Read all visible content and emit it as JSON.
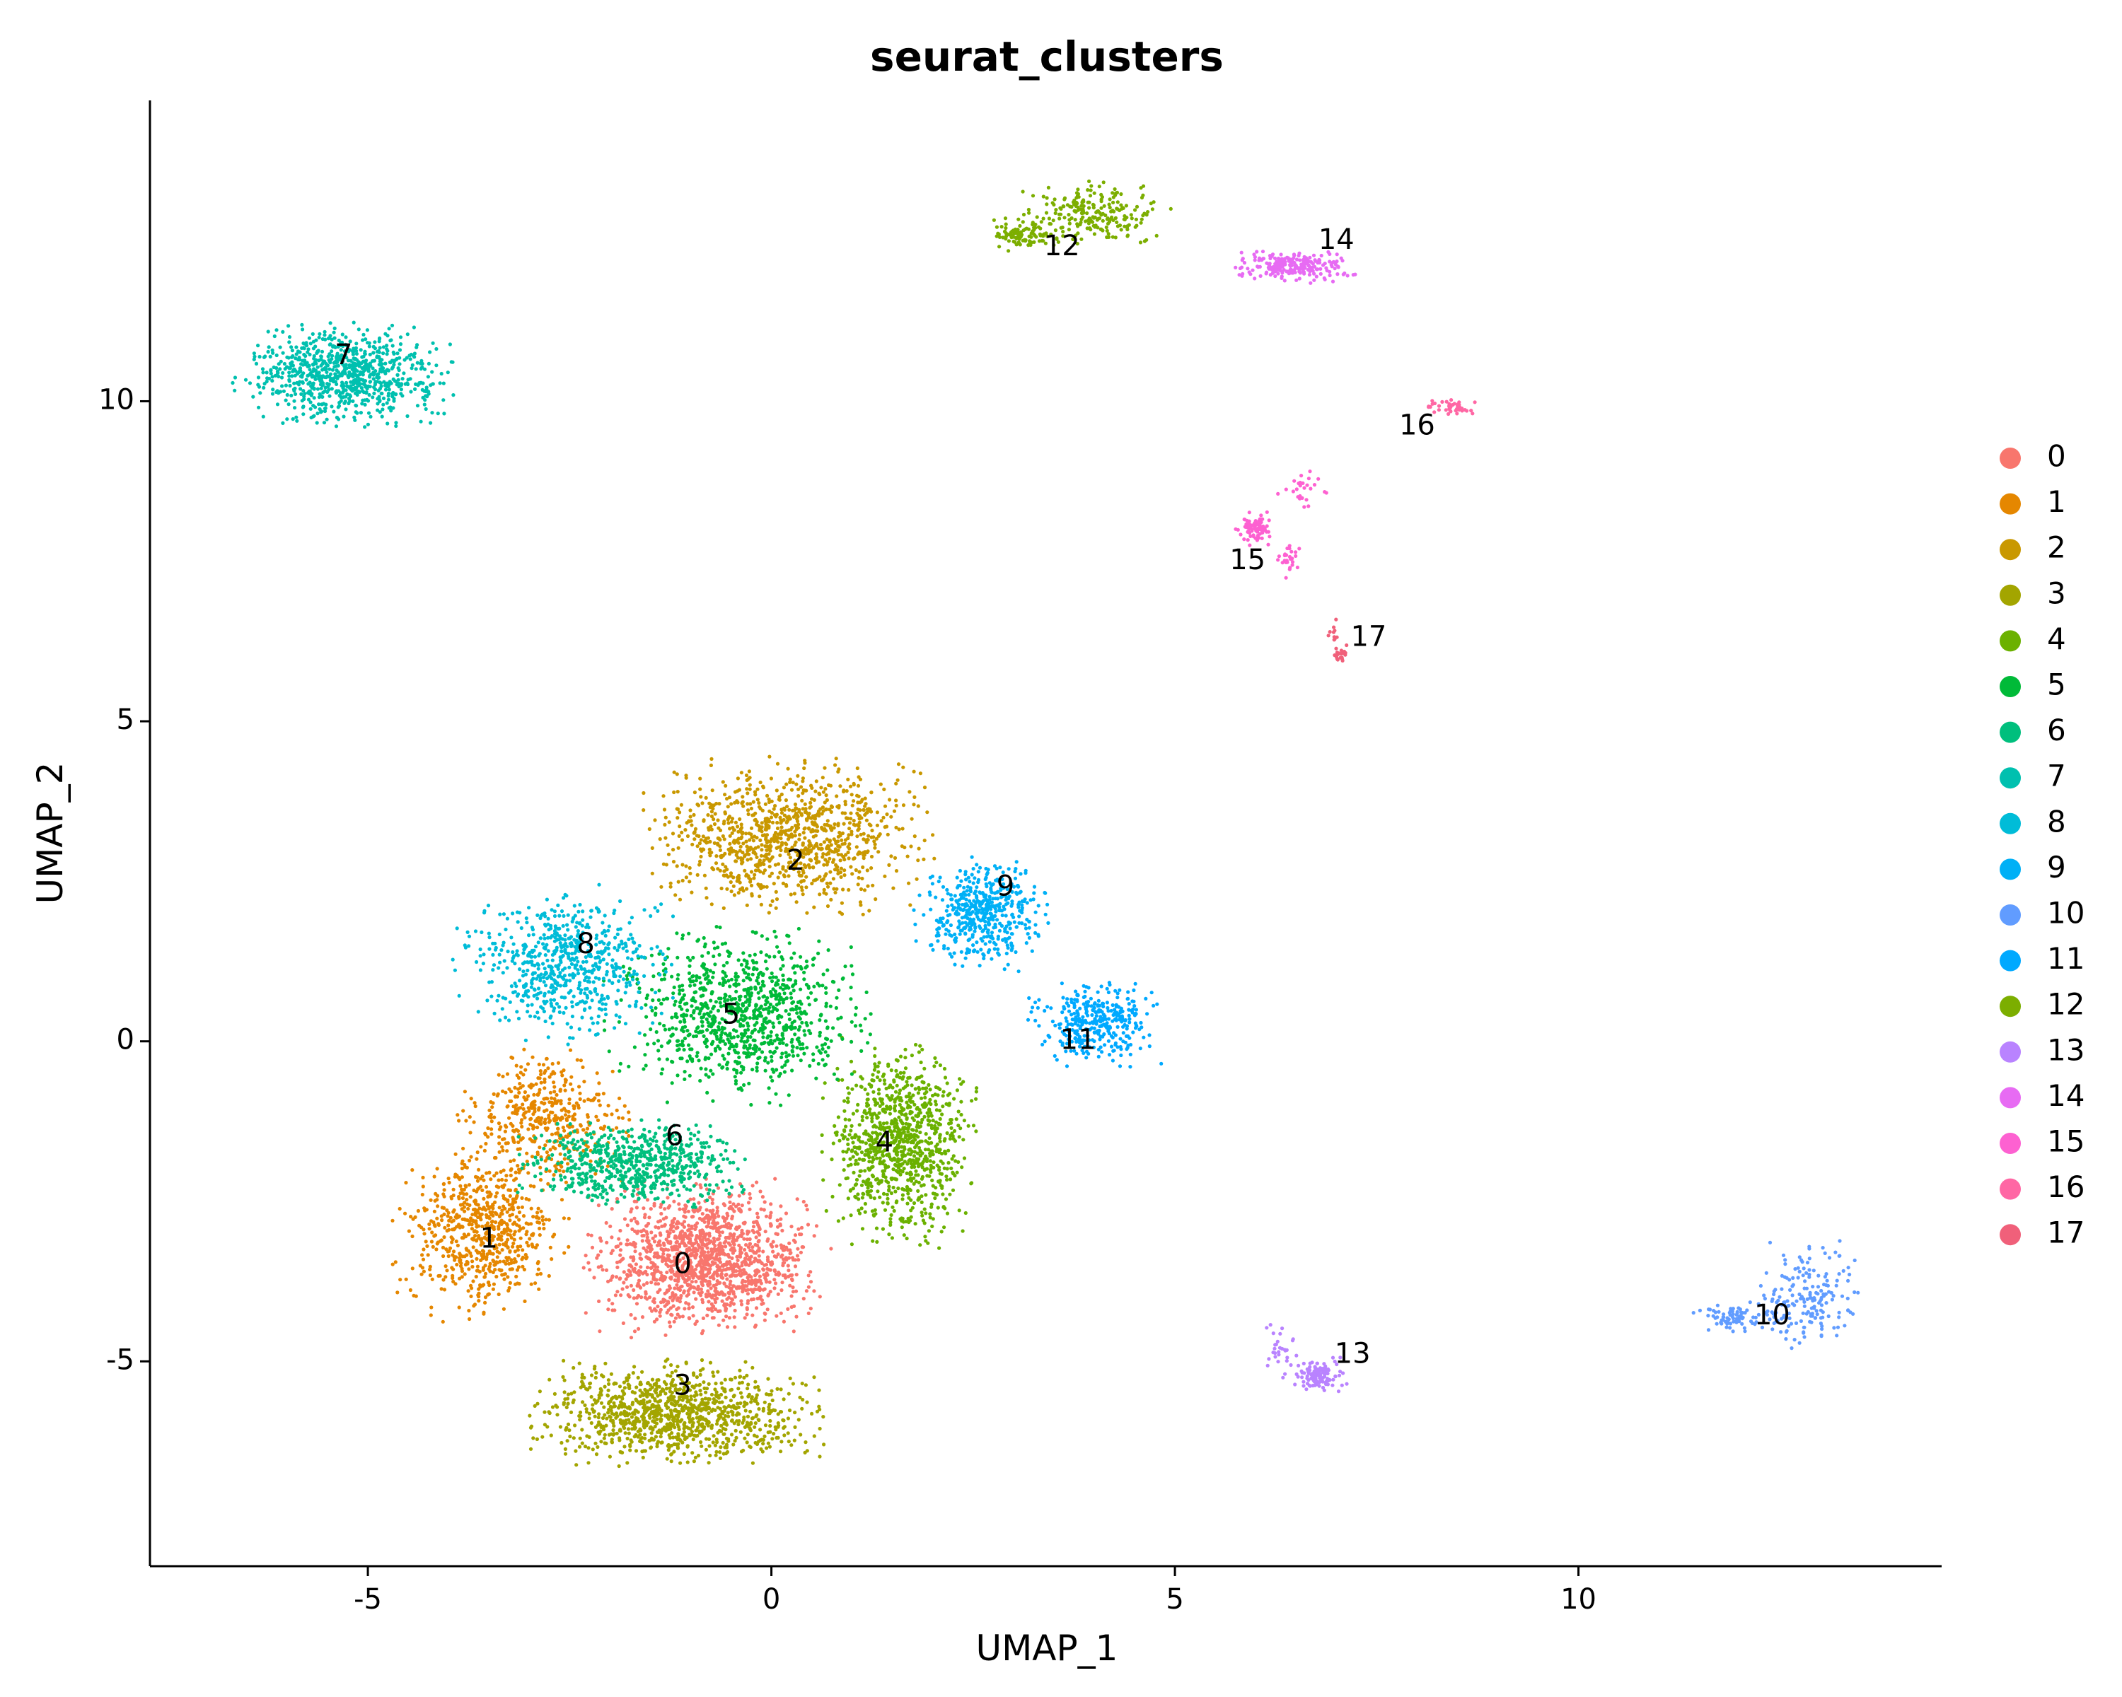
{
  "chart_data": {
    "type": "scatter",
    "title": "seurat_clusters",
    "xlabel": "UMAP_1",
    "ylabel": "UMAP_2",
    "xlim": [
      -7.7,
      14.5
    ],
    "ylim": [
      -8.2,
      14.7
    ],
    "xticks": [
      -5,
      0,
      5,
      10
    ],
    "yticks": [
      -5,
      0,
      5,
      10
    ],
    "grid": false,
    "legend_position": "right",
    "clusters": [
      {
        "name": "0",
        "color": "#F8766D",
        "label_pos": [
          -1.1,
          -3.5
        ],
        "n": 1400,
        "blobs": [
          [
            -0.8,
            -3.4,
            1.1,
            0.9,
            1
          ]
        ]
      },
      {
        "name": "1",
        "color": "#E58700",
        "label_pos": [
          -3.5,
          -3.1
        ],
        "n": 1100,
        "blobs": [
          [
            -3.6,
            -3.0,
            0.8,
            1.0,
            0.6
          ],
          [
            -2.8,
            -1.2,
            0.8,
            0.8,
            0.4
          ]
        ]
      },
      {
        "name": "2",
        "color": "#C99800",
        "label_pos": [
          0.3,
          2.8
        ],
        "n": 1050,
        "blobs": [
          [
            0.2,
            3.2,
            1.3,
            0.9,
            1
          ]
        ]
      },
      {
        "name": "3",
        "color": "#A3A500",
        "label_pos": [
          -1.1,
          -5.4
        ],
        "n": 1050,
        "blobs": [
          [
            -1.2,
            -5.8,
            1.4,
            0.6,
            1
          ]
        ]
      },
      {
        "name": "4",
        "color": "#6BB100",
        "label_pos": [
          1.4,
          -1.6
        ],
        "n": 950,
        "blobs": [
          [
            1.6,
            -1.6,
            0.7,
            1.2,
            1
          ]
        ]
      },
      {
        "name": "5",
        "color": "#00BA38",
        "label_pos": [
          -0.5,
          0.4
        ],
        "n": 950,
        "blobs": [
          [
            -0.4,
            0.4,
            1.2,
            1.0,
            1
          ]
        ]
      },
      {
        "name": "6",
        "color": "#00BF7D",
        "label_pos": [
          -1.2,
          -1.5
        ],
        "n": 650,
        "blobs": [
          [
            -1.7,
            -1.9,
            1.1,
            0.5,
            1
          ]
        ]
      },
      {
        "name": "7",
        "color": "#00C0AF",
        "label_pos": [
          -5.3,
          10.7
        ],
        "n": 850,
        "blobs": [
          [
            -5.3,
            10.4,
            1.0,
            0.6,
            1
          ]
        ]
      },
      {
        "name": "8",
        "color": "#00BCD8",
        "label_pos": [
          -2.3,
          1.5
        ],
        "n": 650,
        "blobs": [
          [
            -2.6,
            1.2,
            1.0,
            0.9,
            1
          ]
        ]
      },
      {
        "name": "9",
        "color": "#00B0F6",
        "label_pos": [
          2.9,
          2.4
        ],
        "n": 480,
        "blobs": [
          [
            2.6,
            2.0,
            0.6,
            0.7,
            1
          ]
        ]
      },
      {
        "name": "10",
        "color": "#619CFF",
        "label_pos": [
          12.4,
          -4.3
        ],
        "n": 260,
        "blobs": [
          [
            12.8,
            -4.0,
            0.5,
            0.7,
            0.7
          ],
          [
            11.9,
            -4.3,
            0.4,
            0.2,
            0.3
          ]
        ]
      },
      {
        "name": "11",
        "color": "#00A9FF",
        "label_pos": [
          3.8,
          0.0
        ],
        "n": 340,
        "blobs": [
          [
            4.0,
            0.3,
            0.6,
            0.5,
            1
          ]
        ]
      },
      {
        "name": "12",
        "color": "#7CAE00",
        "label_pos": [
          3.6,
          12.4
        ],
        "n": 330,
        "blobs": [
          [
            4.0,
            12.9,
            0.7,
            0.4,
            0.7
          ],
          [
            3.1,
            12.6,
            0.3,
            0.2,
            0.3
          ]
        ]
      },
      {
        "name": "13",
        "color": "#B983FF",
        "label_pos": [
          7.2,
          -4.9
        ],
        "n": 150,
        "blobs": [
          [
            6.8,
            -5.2,
            0.25,
            0.2,
            0.8
          ],
          [
            6.3,
            -4.8,
            0.2,
            0.4,
            0.2
          ]
        ]
      },
      {
        "name": "14",
        "color": "#E76BF3",
        "label_pos": [
          7.0,
          12.5
        ],
        "n": 230,
        "blobs": [
          [
            6.5,
            12.1,
            0.6,
            0.2,
            1
          ]
        ]
      },
      {
        "name": "15",
        "color": "#FD61D1",
        "label_pos": [
          5.9,
          7.5
        ],
        "n": 130,
        "blobs": [
          [
            6.0,
            8.0,
            0.18,
            0.2,
            0.6
          ],
          [
            6.6,
            8.6,
            0.3,
            0.3,
            0.2
          ],
          [
            6.4,
            7.5,
            0.15,
            0.2,
            0.2
          ]
        ]
      },
      {
        "name": "16",
        "color": "#FF67A4",
        "label_pos": [
          8.0,
          9.6
        ],
        "n": 45,
        "blobs": [
          [
            8.4,
            9.9,
            0.25,
            0.1,
            1
          ]
        ]
      },
      {
        "name": "17",
        "color": "#F0607A",
        "label_pos": [
          7.4,
          6.3
        ],
        "n": 35,
        "blobs": [
          [
            7.05,
            6.05,
            0.08,
            0.1,
            0.7
          ],
          [
            6.95,
            6.4,
            0.05,
            0.15,
            0.3
          ]
        ]
      }
    ]
  }
}
